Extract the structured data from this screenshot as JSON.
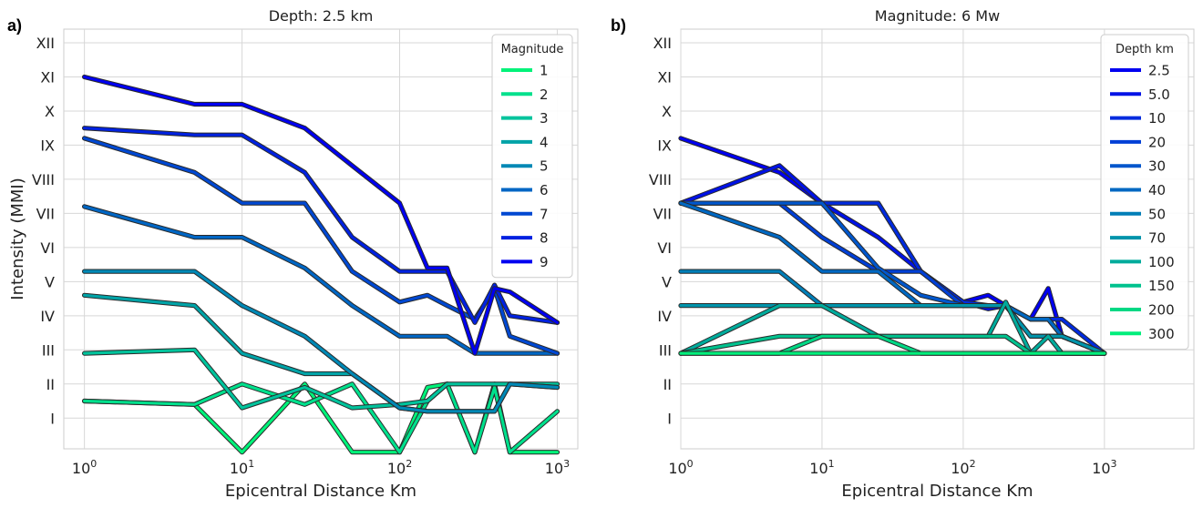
{
  "chart_data": [
    {
      "type": "line",
      "panel_label": "a)",
      "title": "Depth: 2.5 km",
      "xlabel": "Epicentral Distance Km",
      "ylabel": "Intensity (MMI)",
      "xscale": "log",
      "xlim": [
        0.74,
        1350
      ],
      "ylim": [
        0.1,
        12.4
      ],
      "x": [
        1,
        5,
        10,
        25,
        50,
        100,
        150,
        200,
        300,
        400,
        500,
        1000
      ],
      "xticks": [
        {
          "value": 1,
          "base": "10",
          "exp": "0"
        },
        {
          "value": 10,
          "base": "10",
          "exp": "1"
        },
        {
          "value": 100,
          "base": "10",
          "exp": "2"
        },
        {
          "value": 1000,
          "base": "10",
          "exp": "3"
        }
      ],
      "yticks": [
        {
          "value": 1,
          "label": "I"
        },
        {
          "value": 2,
          "label": "II"
        },
        {
          "value": 3,
          "label": "III"
        },
        {
          "value": 4,
          "label": "IV"
        },
        {
          "value": 5,
          "label": "V"
        },
        {
          "value": 6,
          "label": "VI"
        },
        {
          "value": 7,
          "label": "VII"
        },
        {
          "value": 8,
          "label": "VIII"
        },
        {
          "value": 9,
          "label": "IX"
        },
        {
          "value": 10,
          "label": "X"
        },
        {
          "value": 11,
          "label": "XI"
        },
        {
          "value": 12,
          "label": "XII"
        }
      ],
      "legend": {
        "title": "Magnitude",
        "location": "upper right"
      },
      "series": [
        {
          "name": "1",
          "color": "#00f279",
          "values": [
            1.5,
            1.4,
            0.0,
            2.0,
            0.0,
            0.0,
            1.9,
            2.0,
            0.0,
            2.0,
            0.0,
            0.0
          ]
        },
        {
          "name": "2",
          "color": "#00e08c",
          "values": [
            1.5,
            1.4,
            2.0,
            1.4,
            2.0,
            0.0,
            1.5,
            2.0,
            0.0,
            1.9,
            0.0,
            1.2
          ]
        },
        {
          "name": "3",
          "color": "#00c39c",
          "values": [
            2.9,
            3.0,
            1.3,
            1.9,
            1.3,
            1.4,
            1.5,
            2.0,
            2.0,
            2.0,
            2.0,
            2.0
          ]
        },
        {
          "name": "4",
          "color": "#00a3a7",
          "values": [
            4.6,
            4.3,
            2.9,
            2.3,
            2.3,
            1.3,
            1.2,
            1.2,
            1.2,
            1.2,
            2.0,
            1.9
          ]
        },
        {
          "name": "5",
          "color": "#0088b5",
          "values": [
            5.3,
            5.3,
            4.3,
            3.4,
            2.3,
            1.3,
            1.2,
            1.2,
            1.2,
            1.2,
            2.0,
            1.9
          ]
        },
        {
          "name": "6",
          "color": "#0066c4",
          "values": [
            7.2,
            6.3,
            6.3,
            5.4,
            4.3,
            3.4,
            3.4,
            3.4,
            2.9,
            2.9,
            2.9,
            2.9
          ]
        },
        {
          "name": "7",
          "color": "#0048d2",
          "values": [
            9.2,
            8.2,
            7.3,
            7.3,
            5.3,
            4.4,
            4.6,
            4.3,
            3.9,
            4.8,
            3.4,
            2.9
          ]
        },
        {
          "name": "8",
          "color": "#0021e0",
          "values": [
            9.5,
            9.3,
            9.3,
            8.2,
            6.3,
            5.3,
            5.3,
            5.3,
            3.8,
            4.9,
            4.0,
            3.8
          ]
        },
        {
          "name": "9",
          "color": "#0000f0",
          "values": [
            11.0,
            10.2,
            10.2,
            9.5,
            8.4,
            7.3,
            5.4,
            5.4,
            2.9,
            4.8,
            4.7,
            3.8
          ]
        }
      ]
    },
    {
      "type": "line",
      "panel_label": "b)",
      "title": "Magnitude: 6 Mw",
      "xlabel": "Epicentral Distance Km",
      "ylabel": "",
      "xscale": "log",
      "xlim": [
        1,
        4300
      ],
      "ylim": [
        0.1,
        12.4
      ],
      "x": [
        1,
        5,
        10,
        25,
        50,
        100,
        150,
        200,
        300,
        400,
        500,
        1000
      ],
      "xticks": [
        {
          "value": 1,
          "base": "10",
          "exp": "0"
        },
        {
          "value": 10,
          "base": "10",
          "exp": "1"
        },
        {
          "value": 100,
          "base": "10",
          "exp": "2"
        },
        {
          "value": 1000,
          "base": "10",
          "exp": "3"
        }
      ],
      "yticks": [
        {
          "value": 1,
          "label": "I"
        },
        {
          "value": 2,
          "label": "II"
        },
        {
          "value": 3,
          "label": "III"
        },
        {
          "value": 4,
          "label": "IV"
        },
        {
          "value": 5,
          "label": "V"
        },
        {
          "value": 6,
          "label": "VI"
        },
        {
          "value": 7,
          "label": "VII"
        },
        {
          "value": 8,
          "label": "VIII"
        },
        {
          "value": 9,
          "label": "IX"
        },
        {
          "value": 10,
          "label": "X"
        },
        {
          "value": 11,
          "label": "XI"
        },
        {
          "value": 12,
          "label": "XII"
        }
      ],
      "legend": {
        "title": "Depth km",
        "location": "upper right"
      },
      "series": [
        {
          "name": "2.5",
          "color": "#0000f0",
          "values": [
            9.2,
            8.2,
            7.3,
            7.3,
            5.3,
            4.4,
            4.6,
            4.3,
            3.9,
            4.8,
            3.4,
            2.9
          ]
        },
        {
          "name": "5.0",
          "color": "#0012e6",
          "values": [
            7.3,
            8.4,
            7.3,
            6.3,
            5.3,
            4.4,
            4.2,
            4.3,
            3.4,
            3.4,
            3.4,
            2.9
          ]
        },
        {
          "name": "10",
          "color": "#002ade",
          "values": [
            7.3,
            7.3,
            7.3,
            7.3,
            5.3,
            4.4,
            4.3,
            4.3,
            3.9,
            3.9,
            3.9,
            2.9
          ]
        },
        {
          "name": "20",
          "color": "#003fd6",
          "values": [
            7.3,
            7.3,
            6.3,
            5.3,
            5.3,
            4.3,
            4.3,
            4.3,
            3.4,
            3.4,
            3.4,
            2.9
          ]
        },
        {
          "name": "30",
          "color": "#0056cc",
          "values": [
            7.3,
            7.3,
            7.3,
            5.4,
            4.6,
            4.3,
            4.3,
            4.3,
            3.9,
            3.9,
            3.4,
            2.9
          ]
        },
        {
          "name": "40",
          "color": "#0068c2",
          "values": [
            7.3,
            6.3,
            5.3,
            5.3,
            4.3,
            4.3,
            4.3,
            4.3,
            3.9,
            3.9,
            3.4,
            2.9
          ]
        },
        {
          "name": "50",
          "color": "#007eb7",
          "values": [
            5.3,
            5.3,
            4.3,
            4.3,
            4.3,
            4.3,
            4.3,
            4.3,
            3.4,
            3.4,
            3.4,
            2.9
          ]
        },
        {
          "name": "70",
          "color": "#0094ab",
          "values": [
            4.3,
            4.3,
            4.3,
            4.3,
            4.3,
            4.3,
            4.3,
            4.3,
            3.4,
            3.4,
            3.4,
            2.9
          ]
        },
        {
          "name": "100",
          "color": "#00ab9c",
          "values": [
            2.9,
            4.3,
            4.3,
            3.4,
            3.4,
            3.4,
            3.4,
            4.4,
            2.9,
            3.4,
            2.9,
            2.9
          ]
        },
        {
          "name": "150",
          "color": "#00c28e",
          "values": [
            2.9,
            3.4,
            3.4,
            3.4,
            3.4,
            3.4,
            3.4,
            3.4,
            2.9,
            2.9,
            2.9,
            2.9
          ]
        },
        {
          "name": "200",
          "color": "#00d884",
          "values": [
            2.9,
            2.9,
            3.4,
            3.4,
            2.9,
            2.9,
            2.9,
            2.9,
            2.9,
            2.9,
            2.9,
            2.9
          ]
        },
        {
          "name": "300",
          "color": "#00ee7b",
          "values": [
            2.9,
            2.9,
            2.9,
            2.9,
            2.9,
            2.9,
            2.9,
            2.9,
            2.9,
            2.9,
            2.9,
            2.9
          ]
        }
      ]
    }
  ]
}
